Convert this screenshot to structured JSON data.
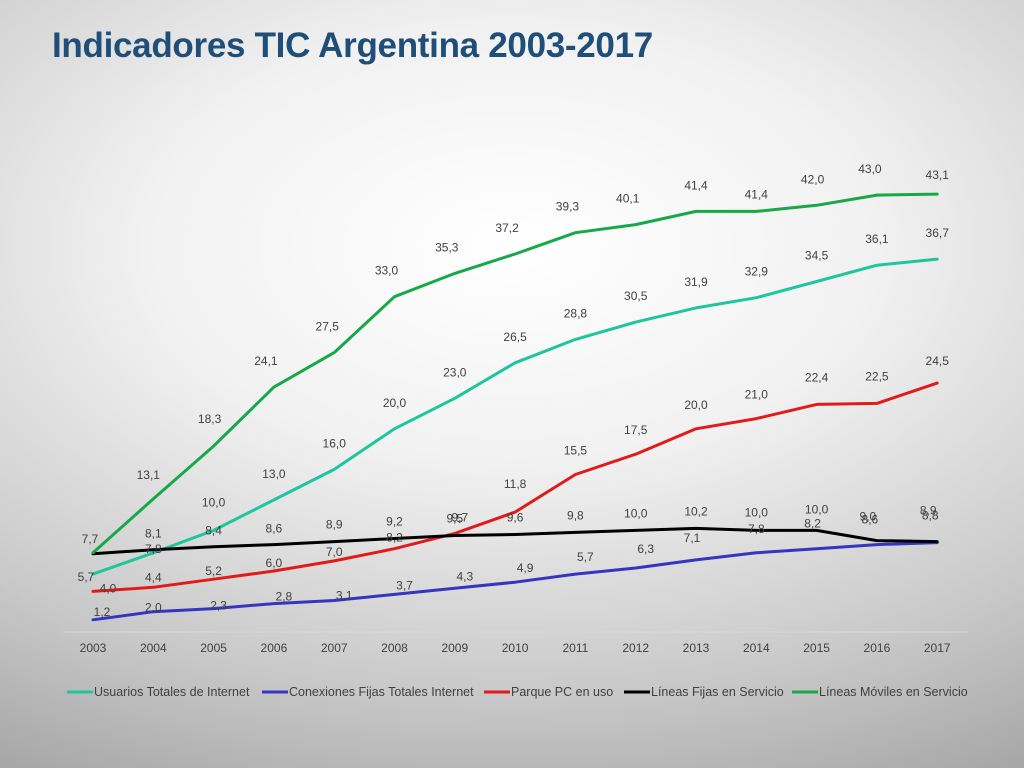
{
  "slide": {
    "title": "Indicadores TIC Argentina 2003-2017"
  },
  "chart_data": {
    "type": "line",
    "title": "",
    "xlabel": "",
    "ylabel": "",
    "x": [
      "2003",
      "2004",
      "2005",
      "2006",
      "2007",
      "2008",
      "2009",
      "2010",
      "2011",
      "2012",
      "2013",
      "2014",
      "2015",
      "2016",
      "2017"
    ],
    "ylim": [
      0,
      50
    ],
    "grid": false,
    "legend_position": "bottom",
    "series": [
      {
        "name": "Usuarios Totales de Internet",
        "color": "#1ec79a",
        "values": [
          5.7,
          7.8,
          10.0,
          13.0,
          16.0,
          20.0,
          23.0,
          26.5,
          28.8,
          30.5,
          31.9,
          32.9,
          34.5,
          36.1,
          36.7
        ],
        "labels": [
          "5,7",
          "7,8",
          "10,0",
          "13,0",
          "16,0",
          "20,0",
          "23,0",
          "26,5",
          "28,8",
          "30,5",
          "31,9",
          "32,9",
          "34,5",
          "36,1",
          "36,7"
        ]
      },
      {
        "name": "Conexiones Fijas Totales Internet",
        "color": "#3535c0",
        "values": [
          1.2,
          2.0,
          2.3,
          2.8,
          3.1,
          3.7,
          4.3,
          4.9,
          5.7,
          6.3,
          7.1,
          7.8,
          8.2,
          8.6,
          8.8
        ],
        "labels": [
          "1,2",
          "2,0",
          "2,3",
          "2,8",
          "3,1",
          "3,7",
          "4,3",
          "4,9",
          "5,7",
          "6,3",
          "7,1",
          "7,8",
          "8,2",
          "8,6",
          "8,8"
        ]
      },
      {
        "name": "Parque PC en uso",
        "color": "#e11b1b",
        "values": [
          4.0,
          4.4,
          5.2,
          6.0,
          7.0,
          8.2,
          9.7,
          11.8,
          15.5,
          17.5,
          20.0,
          21.0,
          22.4,
          22.5,
          24.5
        ],
        "labels": [
          "4,0",
          "4,4",
          "5,2",
          "6,0",
          "7,0",
          "8,2",
          "9,7",
          "11,8",
          "15,5",
          "17,5",
          "20,0",
          "21,0",
          "22,4",
          "22,5",
          "24,5"
        ]
      },
      {
        "name": "Líneas Fijas en Servicio",
        "color": "#000000",
        "values": [
          7.7,
          8.1,
          8.4,
          8.6,
          8.9,
          9.2,
          9.5,
          9.6,
          9.8,
          10.0,
          10.2,
          10.0,
          10.0,
          9.0,
          8.9
        ],
        "labels": [
          "7,7",
          "8,1",
          "8,4",
          "8,6",
          "8,9",
          "9,2",
          "9,5",
          "9,6",
          "9,8",
          "10,0",
          "10,2",
          "10,0",
          "10,0",
          "9,0",
          "8,9"
        ]
      },
      {
        "name": "Líneas Móviles en Servicio",
        "color": "#17a84a",
        "values": [
          7.8,
          13.1,
          18.3,
          24.1,
          27.5,
          33.0,
          35.3,
          37.2,
          39.3,
          40.1,
          41.4,
          41.4,
          42.0,
          43.0,
          43.1
        ],
        "labels": [
          "",
          "13,1",
          "18,3",
          "24,1",
          "27,5",
          "33,0",
          "35,3",
          "37,2",
          "39,3",
          "40,1",
          "41,4",
          "41,4",
          "42,0",
          "43,0",
          "43,1"
        ]
      }
    ]
  }
}
